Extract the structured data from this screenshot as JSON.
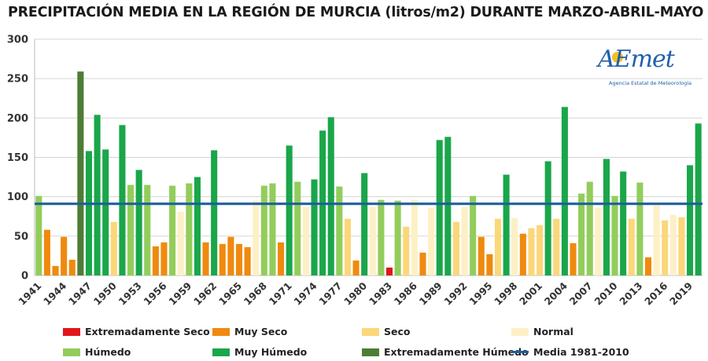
{
  "title": "PRECIPITACIÓN MEDIA EN LA REGIÓN DE MURCIA (litros/m2) DURANTE MARZO-ABRIL-MAYO",
  "logo": {
    "brand": "AEmet",
    "subtitle": "Agencia Estatal de Meteorología"
  },
  "colors": {
    "ext_seco": "#e0161b",
    "muy_seco": "#ef8a0e",
    "seco": "#fbd779",
    "normal": "#fdf0c6",
    "humedo": "#92cd5c",
    "muy_humedo": "#1aa64a",
    "ext_humedo": "#4d7d35",
    "media": "#1f5f9a"
  },
  "legend": [
    {
      "label": "Extremadamente Seco",
      "cat": "ext_seco"
    },
    {
      "label": "Muy Seco",
      "cat": "muy_seco"
    },
    {
      "label": "Seco",
      "cat": "seco"
    },
    {
      "label": "Normal",
      "cat": "normal"
    },
    {
      "label": "Húmedo",
      "cat": "humedo"
    },
    {
      "label": "Muy Húmedo",
      "cat": "muy_humedo"
    },
    {
      "label": "Extremadamente Húmedo",
      "cat": "ext_humedo"
    },
    {
      "label": "Media 1981-2010",
      "cat": "media"
    }
  ],
  "chart_data": {
    "type": "bar",
    "title": "PRECIPITACIÓN MEDIA EN LA REGIÓN DE MURCIA (litros/m2) DURANTE MARZO-ABRIL-MAYO",
    "ylim": [
      0,
      300
    ],
    "yticks": [
      "0",
      "50",
      "100",
      "150",
      "200",
      "250",
      "300"
    ],
    "xticks": [
      "1941",
      "1944",
      "1947",
      "1950",
      "1953",
      "1956",
      "1959",
      "1962",
      "1965",
      "1968",
      "1971",
      "1974",
      "1977",
      "1980",
      "1983",
      "1986",
      "1989",
      "1992",
      "1995",
      "1998",
      "2001",
      "2004",
      "2007",
      "2010",
      "2013",
      "2016",
      "2019"
    ],
    "first_year": 1941,
    "mean_value": 91,
    "mean_label": "Media 1981-2010",
    "bars": [
      {
        "year": 1941,
        "value": 101,
        "cat": "humedo"
      },
      {
        "year": 1942,
        "value": 58,
        "cat": "muy_seco"
      },
      {
        "year": 1943,
        "value": 12,
        "cat": "muy_seco"
      },
      {
        "year": 1944,
        "value": 49,
        "cat": "muy_seco"
      },
      {
        "year": 1945,
        "value": 20,
        "cat": "muy_seco"
      },
      {
        "year": 1946,
        "value": 259,
        "cat": "ext_humedo"
      },
      {
        "year": 1947,
        "value": 158,
        "cat": "muy_humedo"
      },
      {
        "year": 1948,
        "value": 204,
        "cat": "muy_humedo"
      },
      {
        "year": 1949,
        "value": 160,
        "cat": "muy_humedo"
      },
      {
        "year": 1950,
        "value": 68,
        "cat": "seco"
      },
      {
        "year": 1951,
        "value": 191,
        "cat": "muy_humedo"
      },
      {
        "year": 1952,
        "value": 115,
        "cat": "humedo"
      },
      {
        "year": 1953,
        "value": 134,
        "cat": "muy_humedo"
      },
      {
        "year": 1954,
        "value": 115,
        "cat": "humedo"
      },
      {
        "year": 1955,
        "value": 37,
        "cat": "muy_seco"
      },
      {
        "year": 1956,
        "value": 42,
        "cat": "muy_seco"
      },
      {
        "year": 1957,
        "value": 114,
        "cat": "humedo"
      },
      {
        "year": 1958,
        "value": 81,
        "cat": "normal"
      },
      {
        "year": 1959,
        "value": 117,
        "cat": "humedo"
      },
      {
        "year": 1960,
        "value": 125,
        "cat": "muy_humedo"
      },
      {
        "year": 1961,
        "value": 42,
        "cat": "muy_seco"
      },
      {
        "year": 1962,
        "value": 159,
        "cat": "muy_humedo"
      },
      {
        "year": 1963,
        "value": 40,
        "cat": "muy_seco"
      },
      {
        "year": 1964,
        "value": 49,
        "cat": "muy_seco"
      },
      {
        "year": 1965,
        "value": 40,
        "cat": "muy_seco"
      },
      {
        "year": 1966,
        "value": 36,
        "cat": "muy_seco"
      },
      {
        "year": 1967,
        "value": 95,
        "cat": "normal"
      },
      {
        "year": 1968,
        "value": 114,
        "cat": "humedo"
      },
      {
        "year": 1969,
        "value": 117,
        "cat": "humedo"
      },
      {
        "year": 1970,
        "value": 42,
        "cat": "muy_seco"
      },
      {
        "year": 1971,
        "value": 165,
        "cat": "muy_humedo"
      },
      {
        "year": 1972,
        "value": 119,
        "cat": "humedo"
      },
      {
        "year": 1973,
        "value": 87,
        "cat": "normal"
      },
      {
        "year": 1974,
        "value": 122,
        "cat": "muy_humedo"
      },
      {
        "year": 1975,
        "value": 184,
        "cat": "muy_humedo"
      },
      {
        "year": 1976,
        "value": 201,
        "cat": "muy_humedo"
      },
      {
        "year": 1977,
        "value": 113,
        "cat": "humedo"
      },
      {
        "year": 1978,
        "value": 72,
        "cat": "seco"
      },
      {
        "year": 1979,
        "value": 19,
        "cat": "muy_seco"
      },
      {
        "year": 1980,
        "value": 130,
        "cat": "muy_humedo"
      },
      {
        "year": 1981,
        "value": 87,
        "cat": "normal"
      },
      {
        "year": 1982,
        "value": 96,
        "cat": "humedo"
      },
      {
        "year": 1983,
        "value": 10,
        "cat": "ext_seco"
      },
      {
        "year": 1984,
        "value": 95,
        "cat": "humedo"
      },
      {
        "year": 1985,
        "value": 62,
        "cat": "seco"
      },
      {
        "year": 1986,
        "value": 96,
        "cat": "normal"
      },
      {
        "year": 1987,
        "value": 29,
        "cat": "muy_seco"
      },
      {
        "year": 1988,
        "value": 86,
        "cat": "normal"
      },
      {
        "year": 1989,
        "value": 172,
        "cat": "muy_humedo"
      },
      {
        "year": 1990,
        "value": 176,
        "cat": "muy_humedo"
      },
      {
        "year": 1991,
        "value": 68,
        "cat": "seco"
      },
      {
        "year": 1992,
        "value": 87,
        "cat": "normal"
      },
      {
        "year": 1993,
        "value": 101,
        "cat": "humedo"
      },
      {
        "year": 1994,
        "value": 49,
        "cat": "muy_seco"
      },
      {
        "year": 1995,
        "value": 27,
        "cat": "muy_seco"
      },
      {
        "year": 1996,
        "value": 72,
        "cat": "seco"
      },
      {
        "year": 1997,
        "value": 128,
        "cat": "muy_humedo"
      },
      {
        "year": 1998,
        "value": 73,
        "cat": "normal"
      },
      {
        "year": 1999,
        "value": 53,
        "cat": "muy_seco"
      },
      {
        "year": 2000,
        "value": 60,
        "cat": "seco"
      },
      {
        "year": 2001,
        "value": 64,
        "cat": "seco"
      },
      {
        "year": 2002,
        "value": 145,
        "cat": "muy_humedo"
      },
      {
        "year": 2003,
        "value": 72,
        "cat": "seco"
      },
      {
        "year": 2004,
        "value": 214,
        "cat": "muy_humedo"
      },
      {
        "year": 2005,
        "value": 41,
        "cat": "muy_seco"
      },
      {
        "year": 2006,
        "value": 104,
        "cat": "humedo"
      },
      {
        "year": 2007,
        "value": 119,
        "cat": "humedo"
      },
      {
        "year": 2008,
        "value": 86,
        "cat": "normal"
      },
      {
        "year": 2009,
        "value": 148,
        "cat": "muy_humedo"
      },
      {
        "year": 2010,
        "value": 101,
        "cat": "humedo"
      },
      {
        "year": 2011,
        "value": 132,
        "cat": "muy_humedo"
      },
      {
        "year": 2012,
        "value": 72,
        "cat": "seco"
      },
      {
        "year": 2013,
        "value": 118,
        "cat": "humedo"
      },
      {
        "year": 2014,
        "value": 23,
        "cat": "muy_seco"
      },
      {
        "year": 2015,
        "value": 89,
        "cat": "normal"
      },
      {
        "year": 2016,
        "value": 70,
        "cat": "seco"
      },
      {
        "year": 2017,
        "value": 77,
        "cat": "normal"
      },
      {
        "year": 2018,
        "value": 74,
        "cat": "seco"
      },
      {
        "year": 2019,
        "value": 140,
        "cat": "muy_humedo"
      },
      {
        "year": 2020,
        "value": 193,
        "cat": "muy_humedo"
      }
    ]
  }
}
